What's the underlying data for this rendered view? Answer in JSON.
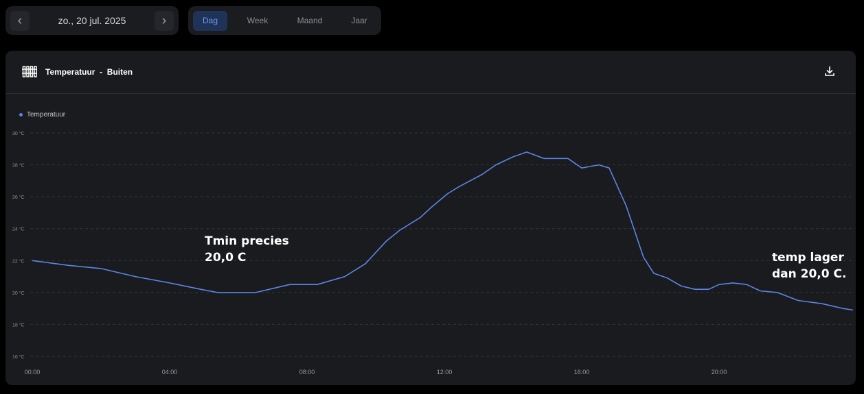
{
  "date_nav": {
    "prev_icon": "chevron-left-icon",
    "label": "zo., 20 jul. 2025",
    "next_icon": "chevron-right-icon"
  },
  "periods": [
    {
      "label": "Dag",
      "active": true
    },
    {
      "label": "Week",
      "active": false
    },
    {
      "label": "Maand",
      "active": false
    },
    {
      "label": "Jaar",
      "active": false
    }
  ],
  "card": {
    "icon": "fence-icon",
    "title": "Temperatuur  -  Buiten",
    "download_icon": "download-icon"
  },
  "annotations": {
    "left_line1": "Tmin precies",
    "left_line2": "20,0 C",
    "right_line1": "temp lager",
    "right_line2": "dan 20,0 C."
  },
  "colors": {
    "line": "#5b86e5",
    "accent": "#6d9bf0"
  },
  "chart_data": {
    "type": "line",
    "legend": [
      "Temperatuur"
    ],
    "ylim": [
      16,
      30
    ],
    "yticks": [
      "16 °C",
      "18 °C",
      "20 °C",
      "22 °C",
      "24 °C",
      "26 °C",
      "28 °C",
      "30 °C"
    ],
    "xticks": [
      "00:00",
      "04:00",
      "08:00",
      "12:00",
      "16:00",
      "20:00"
    ],
    "xlim_hours": [
      0,
      24
    ],
    "series": [
      {
        "name": "Temperatuur",
        "x_hours": [
          0,
          1.06,
          2,
          3,
          4,
          4.9,
          5.4,
          6.5,
          7.5,
          8.3,
          9.1,
          9.7,
          10.3,
          10.7,
          11.3,
          11.6,
          12.1,
          12.4,
          13.1,
          13.5,
          14,
          14.4,
          14.9,
          15.6,
          16,
          16.5,
          16.8,
          17.3,
          17.8,
          18.1,
          18.5,
          18.9,
          19.3,
          19.7,
          20,
          20.4,
          20.8,
          21.2,
          21.7,
          22.3,
          23,
          23.6,
          23.9
        ],
        "values": [
          22.0,
          21.7,
          21.5,
          21.0,
          20.6,
          20.2,
          20.0,
          20.0,
          20.5,
          20.5,
          21.0,
          21.8,
          23.2,
          23.9,
          24.7,
          25.3,
          26.2,
          26.6,
          27.4,
          28.0,
          28.5,
          28.8,
          28.4,
          28.4,
          27.8,
          28.0,
          27.8,
          25.4,
          22.2,
          21.2,
          20.9,
          20.4,
          20.2,
          20.2,
          20.5,
          20.6,
          20.5,
          20.1,
          20.0,
          19.5,
          19.3,
          19.0,
          18.9
        ]
      }
    ]
  }
}
